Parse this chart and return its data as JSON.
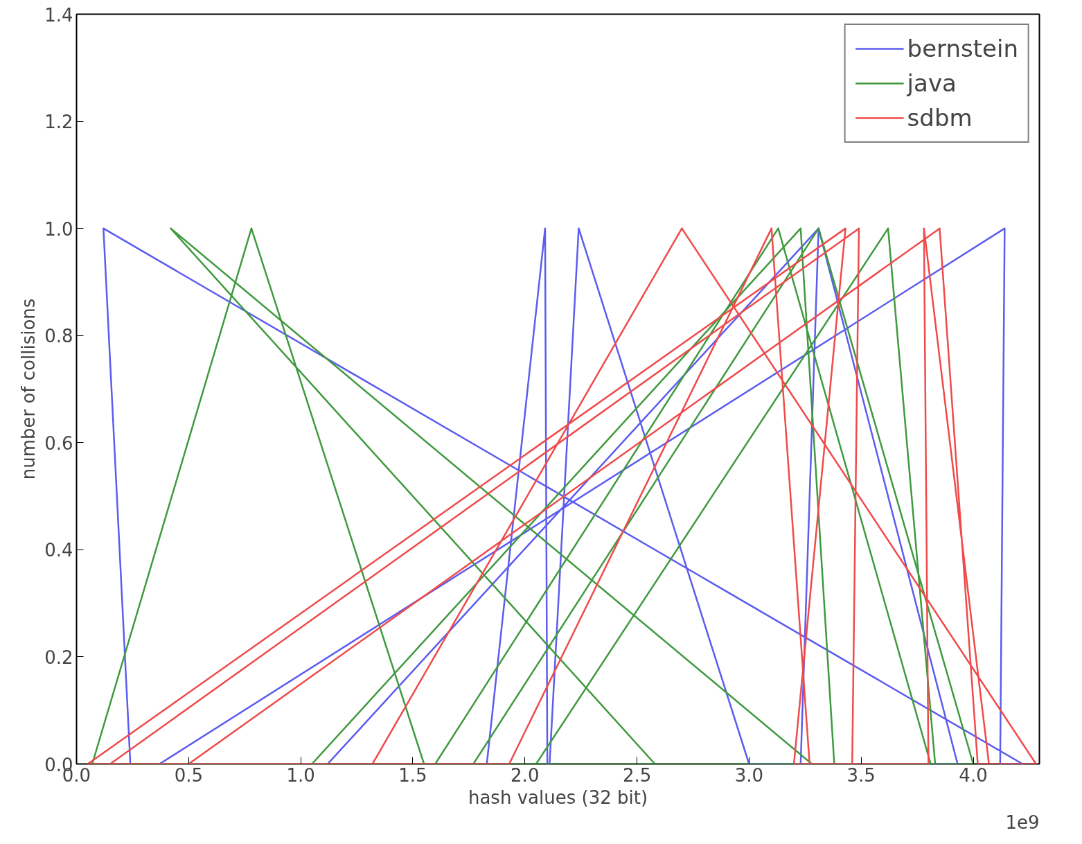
{
  "chart_data": {
    "type": "line",
    "xlabel": "hash values (32 bit)",
    "ylabel": "number of collisions",
    "annotations": [
      "1e9"
    ],
    "xlim": [
      0,
      4.295
    ],
    "ylim": [
      0,
      1.4
    ],
    "xticks": [
      {
        "value": 0,
        "label": "0.0"
      },
      {
        "value": 0.5,
        "label": "0.5"
      },
      {
        "value": 1,
        "label": "1.0"
      },
      {
        "value": 1.5,
        "label": "1.5"
      },
      {
        "value": 2,
        "label": "2.0"
      },
      {
        "value": 2.5,
        "label": "2.5"
      },
      {
        "value": 3,
        "label": "3.0"
      },
      {
        "value": 3.5,
        "label": "3.5"
      },
      {
        "value": 4,
        "label": "4.0"
      }
    ],
    "yticks": [
      {
        "value": 0,
        "label": "0.0"
      },
      {
        "value": 0.2,
        "label": "0.2"
      },
      {
        "value": 0.4,
        "label": "0.4"
      },
      {
        "value": 0.6,
        "label": "0.6"
      },
      {
        "value": 0.8,
        "label": "0.8"
      },
      {
        "value": 1,
        "label": "1.0"
      },
      {
        "value": 1.2,
        "label": "1.2"
      },
      {
        "value": 1.4,
        "label": "1.4"
      }
    ],
    "grid": false,
    "legend": "top right",
    "marker": "none",
    "line_style": "solid",
    "series": [
      {
        "name": "bernstein",
        "color": "#5c5cf0",
        "x": [
          0.24,
          0.12,
          4.22,
          4.12,
          4.14,
          0.37,
          1.12,
          3.31,
          3.23,
          3.31,
          3.93,
          3.0,
          2.24,
          2.11,
          2.1,
          2.09,
          1.83
        ],
        "values": [
          0,
          1,
          0,
          0,
          1,
          0,
          0,
          1,
          0,
          1,
          0,
          0,
          1,
          0,
          0,
          1,
          0
        ]
      },
      {
        "name": "java",
        "color": "#3f9a3f",
        "x": [
          1.55,
          0.78,
          0.07,
          2.58,
          0.42,
          3.28,
          1.05,
          3.23,
          3.38,
          1.6,
          3.13,
          3.81,
          1.77,
          3.31,
          4.0,
          2.05,
          3.62,
          3.83
        ],
        "values": [
          0,
          1,
          0,
          0,
          1,
          0,
          0,
          1,
          0,
          0,
          1,
          0,
          0,
          1,
          0,
          0,
          1,
          0
        ]
      },
      {
        "name": "sdbm",
        "color": "#f04a4a",
        "x": [
          1.32,
          2.7,
          4.28,
          4.02,
          3.85,
          0.5,
          0.15,
          3.49,
          3.46,
          3.2,
          3.43,
          0.05,
          1.93,
          3.1,
          3.27,
          3.8,
          3.78,
          4.07
        ],
        "values": [
          0,
          1,
          0,
          0,
          1,
          0,
          0,
          1,
          0,
          0,
          1,
          0,
          0,
          1,
          0,
          0,
          1,
          0
        ]
      }
    ]
  }
}
